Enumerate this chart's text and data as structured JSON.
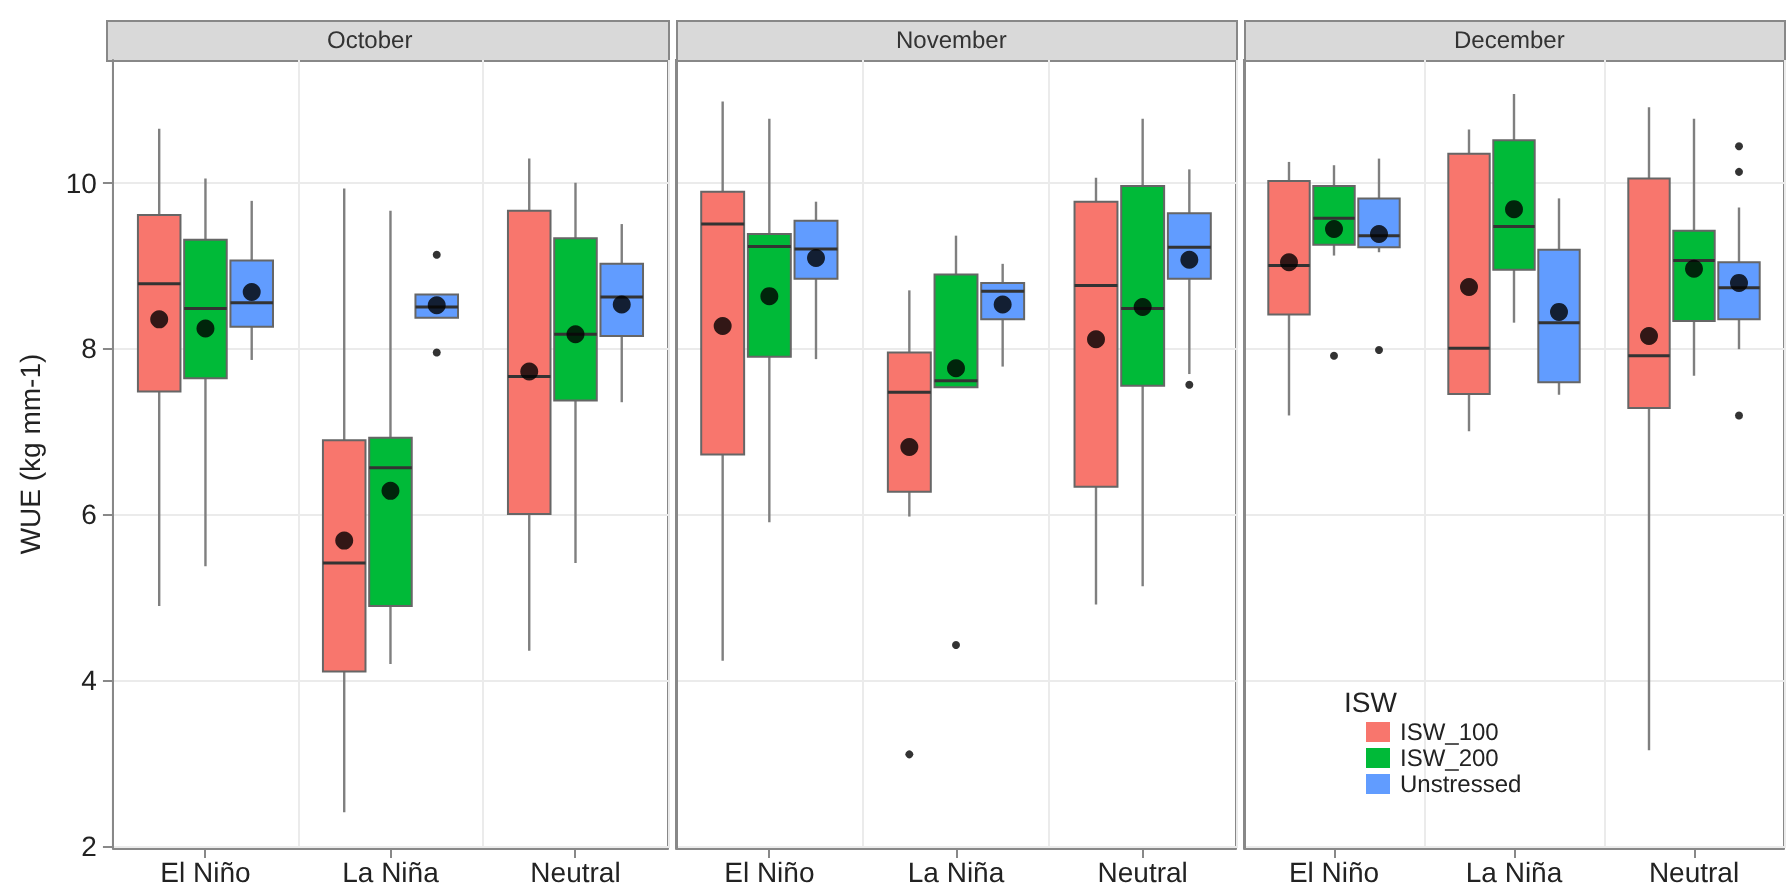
{
  "chart_data": [
    {
      "type": "box",
      "title": "October",
      "ylabel": "WUE (kg mm-1)",
      "categories": [
        "El Niño",
        "La Niña",
        "Neutral"
      ],
      "ylim": [
        1.97,
        11.48
      ],
      "yticks": [
        2,
        4,
        6,
        8,
        10
      ],
      "grid": true,
      "series": [
        {
          "color": "#f8766d",
          "boxes": [
            {
              "low": 4.89,
              "q1": 7.48,
              "median": 8.78,
              "q3": 9.61,
              "high": 10.65,
              "mean": 8.35
            },
            {
              "low": 2.4,
              "q1": 4.1,
              "median": 5.41,
              "q3": 6.89,
              "high": 9.93,
              "mean": 5.68
            },
            {
              "low": 4.35,
              "q1": 6.0,
              "median": 7.66,
              "q3": 9.66,
              "high": 10.29,
              "mean": 7.72
            }
          ]
        },
        {
          "color": "#00ba38",
          "boxes": [
            {
              "low": 5.37,
              "q1": 7.64,
              "median": 8.48,
              "q3": 9.31,
              "high": 10.05,
              "mean": 8.24
            },
            {
              "low": 4.19,
              "q1": 4.89,
              "median": 6.56,
              "q3": 6.92,
              "high": 9.66,
              "mean": 6.28
            },
            {
              "low": 5.41,
              "q1": 7.37,
              "median": 8.17,
              "q3": 9.33,
              "high": 10.0,
              "mean": 8.17
            }
          ]
        },
        {
          "color": "#619cff",
          "boxes": [
            {
              "low": 7.86,
              "q1": 8.26,
              "median": 8.55,
              "q3": 9.06,
              "high": 9.78,
              "mean": 8.68
            },
            {
              "low": 8.37,
              "q1": 8.37,
              "median": 8.5,
              "q3": 8.65,
              "high": 8.65,
              "mean": 8.52,
              "outliers": [
                9.13,
                7.95
              ]
            },
            {
              "low": 7.35,
              "q1": 8.15,
              "median": 8.62,
              "q3": 9.02,
              "high": 9.5,
              "mean": 8.53
            }
          ]
        }
      ]
    },
    {
      "type": "box",
      "title": "November",
      "categories": [
        "El Niño",
        "La Niña",
        "Neutral"
      ],
      "ylim": [
        1.97,
        11.48
      ],
      "yticks": [
        2,
        4,
        6,
        8,
        10
      ],
      "grid": true,
      "tick_labels": "x",
      "series": [
        {
          "color": "#f8766d",
          "boxes": [
            {
              "low": 4.23,
              "q1": 6.72,
              "median": 9.5,
              "q3": 9.89,
              "high": 10.98,
              "mean": 8.27
            },
            {
              "low": 5.97,
              "q1": 6.27,
              "median": 7.47,
              "q3": 7.95,
              "high": 8.7,
              "mean": 6.81,
              "outliers": [
                3.1
              ]
            },
            {
              "low": 4.91,
              "q1": 6.33,
              "median": 8.76,
              "q3": 9.77,
              "high": 10.06,
              "mean": 8.11
            }
          ]
        },
        {
          "color": "#00ba38",
          "boxes": [
            {
              "low": 5.9,
              "q1": 7.9,
              "median": 9.23,
              "q3": 9.38,
              "high": 10.77,
              "mean": 8.63
            },
            {
              "low": 7.53,
              "q1": 7.53,
              "median": 7.61,
              "q3": 8.89,
              "high": 9.36,
              "mean": 7.76,
              "outliers": [
                4.42
              ]
            },
            {
              "low": 5.13,
              "q1": 7.55,
              "median": 8.48,
              "q3": 9.96,
              "high": 10.77,
              "mean": 8.5
            }
          ]
        },
        {
          "color": "#619cff",
          "boxes": [
            {
              "low": 7.87,
              "q1": 8.84,
              "median": 9.2,
              "q3": 9.54,
              "high": 9.77,
              "mean": 9.09
            },
            {
              "low": 7.78,
              "q1": 8.35,
              "median": 8.69,
              "q3": 8.79,
              "high": 9.02,
              "mean": 8.53
            },
            {
              "low": 7.69,
              "q1": 8.84,
              "median": 9.22,
              "q3": 9.63,
              "high": 10.16,
              "mean": 9.07,
              "outliers": [
                7.56
              ]
            }
          ]
        }
      ]
    },
    {
      "type": "box",
      "title": "December",
      "categories": [
        "El Niño",
        "La Niña",
        "Neutral"
      ],
      "ylim": [
        1.97,
        11.48
      ],
      "yticks": [
        2,
        4,
        6,
        8,
        10
      ],
      "grid": true,
      "tick_labels": "x",
      "legend": "bottom left",
      "legend_title": "ISW",
      "series": [
        {
          "name": "ISW_100",
          "color": "#f8766d",
          "boxes": [
            {
              "low": 7.19,
              "q1": 8.41,
              "median": 9.0,
              "q3": 10.02,
              "high": 10.25,
              "mean": 9.04
            },
            {
              "low": 7.0,
              "q1": 7.45,
              "median": 8.0,
              "q3": 10.35,
              "high": 10.64,
              "mean": 8.74
            },
            {
              "low": 3.15,
              "q1": 7.28,
              "median": 7.91,
              "q3": 10.05,
              "high": 10.91,
              "mean": 8.15
            }
          ]
        },
        {
          "name": "ISW_200",
          "color": "#00ba38",
          "boxes": [
            {
              "low": 9.12,
              "q1": 9.25,
              "median": 9.57,
              "q3": 9.96,
              "high": 10.21,
              "mean": 9.44,
              "outliers": [
                7.91
              ]
            },
            {
              "low": 8.31,
              "q1": 8.95,
              "median": 9.47,
              "q3": 10.51,
              "high": 11.07,
              "mean": 9.68
            },
            {
              "low": 7.67,
              "q1": 8.33,
              "median": 9.06,
              "q3": 9.42,
              "high": 10.77,
              "mean": 8.96
            }
          ]
        },
        {
          "name": "Unstressed",
          "color": "#619cff",
          "boxes": [
            {
              "low": 9.16,
              "q1": 9.22,
              "median": 9.36,
              "q3": 9.81,
              "high": 10.29,
              "mean": 9.38,
              "outliers": [
                7.98
              ]
            },
            {
              "low": 7.44,
              "q1": 7.59,
              "median": 8.31,
              "q3": 9.19,
              "high": 9.81,
              "mean": 8.44
            },
            {
              "low": 7.99,
              "q1": 8.35,
              "median": 8.73,
              "q3": 9.04,
              "high": 9.7,
              "mean": 8.79,
              "outliers": [
                10.44,
                10.13,
                7.19
              ]
            }
          ]
        }
      ]
    }
  ]
}
